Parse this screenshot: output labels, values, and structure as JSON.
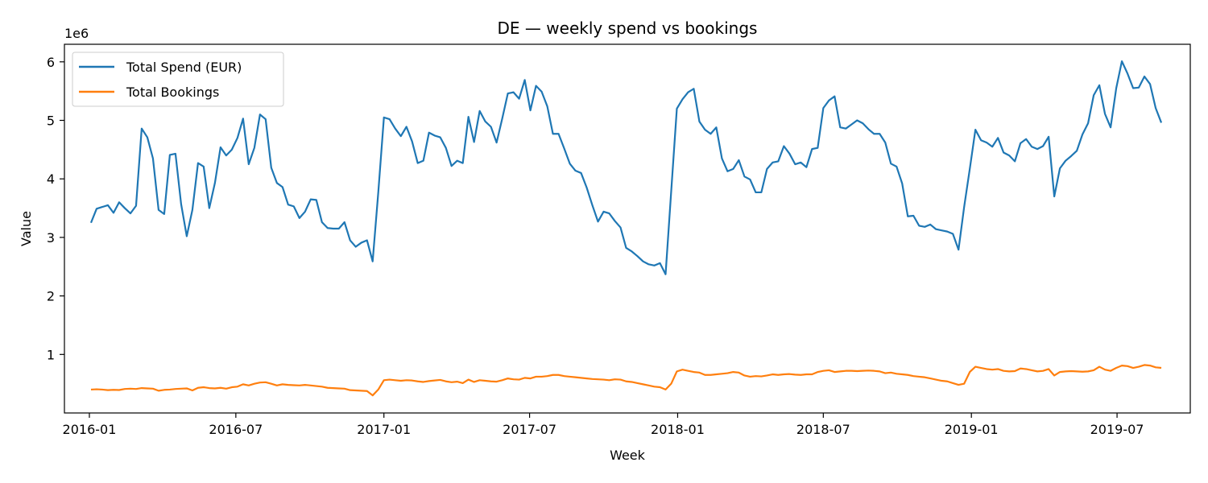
{
  "chart_data": {
    "type": "line",
    "title": "DE — weekly spend vs bookings",
    "xlabel": "Week",
    "ylabel": "Value",
    "y_scale_label": "1e6",
    "y_scale": 1000000,
    "xlim": [
      "2015-12-01",
      "2019-09-30"
    ],
    "ylim": [
      0,
      6300000
    ],
    "x_ticks": [
      "2016-01",
      "2016-07",
      "2017-01",
      "2017-07",
      "2018-01",
      "2018-07",
      "2019-01",
      "2019-07"
    ],
    "y_ticks": [
      1,
      2,
      3,
      4,
      5,
      6
    ],
    "grid": false,
    "legend_position": "top-left",
    "x_start": "2016-01-03",
    "x_step_days": 7,
    "series": [
      {
        "name": "Total Spend (EUR)",
        "color": "#1f77b4",
        "values": [
          3250000,
          3490000,
          3520000,
          3550000,
          3420000,
          3600000,
          3500000,
          3410000,
          3540000,
          4860000,
          4710000,
          4350000,
          3470000,
          3400000,
          4410000,
          4430000,
          3570000,
          3020000,
          3470000,
          4270000,
          4210000,
          3500000,
          3930000,
          4540000,
          4400000,
          4500000,
          4700000,
          5030000,
          4250000,
          4530000,
          5100000,
          5020000,
          4190000,
          3930000,
          3860000,
          3560000,
          3530000,
          3330000,
          3440000,
          3650000,
          3640000,
          3260000,
          3160000,
          3150000,
          3150000,
          3260000,
          2950000,
          2840000,
          2910000,
          2950000,
          2590000,
          3770000,
          5050000,
          5020000,
          4860000,
          4730000,
          4890000,
          4640000,
          4270000,
          4310000,
          4790000,
          4740000,
          4710000,
          4530000,
          4220000,
          4310000,
          4270000,
          5060000,
          4630000,
          5160000,
          4980000,
          4890000,
          4620000,
          5030000,
          5460000,
          5480000,
          5370000,
          5690000,
          5170000,
          5590000,
          5490000,
          5240000,
          4770000,
          4770000,
          4520000,
          4260000,
          4140000,
          4100000,
          3850000,
          3550000,
          3270000,
          3440000,
          3410000,
          3280000,
          3170000,
          2820000,
          2760000,
          2680000,
          2590000,
          2540000,
          2520000,
          2560000,
          2370000,
          3790000,
          5200000,
          5360000,
          5480000,
          5540000,
          4980000,
          4840000,
          4770000,
          4880000,
          4350000,
          4130000,
          4170000,
          4320000,
          4040000,
          3990000,
          3770000,
          3770000,
          4170000,
          4280000,
          4300000,
          4560000,
          4430000,
          4250000,
          4280000,
          4200000,
          4510000,
          4530000,
          5210000,
          5340000,
          5410000,
          4880000,
          4860000,
          4930000,
          5000000,
          4950000,
          4850000,
          4770000,
          4770000,
          4620000,
          4260000,
          4210000,
          3920000,
          3360000,
          3370000,
          3200000,
          3180000,
          3220000,
          3140000,
          3120000,
          3100000,
          3060000,
          2790000,
          3520000,
          4170000,
          4840000,
          4660000,
          4620000,
          4550000,
          4700000,
          4450000,
          4400000,
          4300000,
          4610000,
          4680000,
          4550000,
          4510000,
          4560000,
          4720000,
          3700000,
          4180000,
          4310000,
          4390000,
          4480000,
          4760000,
          4950000,
          5430000,
          5600000,
          5110000,
          4880000,
          5550000,
          6010000,
          5800000,
          5550000,
          5560000,
          5750000,
          5620000,
          5210000,
          4960000
        ]
      },
      {
        "name": "Total Bookings",
        "color": "#ff7f0e",
        "values": [
          400000,
          405000,
          400000,
          390000,
          395000,
          392000,
          410000,
          415000,
          410000,
          425000,
          420000,
          415000,
          380000,
          395000,
          400000,
          410000,
          415000,
          420000,
          385000,
          430000,
          440000,
          425000,
          420000,
          430000,
          415000,
          440000,
          450000,
          490000,
          470000,
          500000,
          520000,
          525000,
          500000,
          470000,
          490000,
          480000,
          475000,
          470000,
          480000,
          470000,
          460000,
          450000,
          430000,
          425000,
          420000,
          415000,
          390000,
          385000,
          380000,
          375000,
          300000,
          400000,
          560000,
          570000,
          560000,
          550000,
          560000,
          555000,
          540000,
          530000,
          545000,
          555000,
          565000,
          540000,
          525000,
          535000,
          510000,
          570000,
          530000,
          560000,
          550000,
          540000,
          535000,
          560000,
          590000,
          575000,
          570000,
          600000,
          590000,
          620000,
          620000,
          630000,
          650000,
          650000,
          630000,
          620000,
          610000,
          600000,
          590000,
          580000,
          575000,
          570000,
          560000,
          575000,
          570000,
          540000,
          530000,
          510000,
          490000,
          470000,
          450000,
          440000,
          400000,
          500000,
          710000,
          740000,
          720000,
          700000,
          690000,
          650000,
          650000,
          660000,
          670000,
          680000,
          700000,
          690000,
          640000,
          620000,
          630000,
          625000,
          640000,
          660000,
          650000,
          660000,
          665000,
          655000,
          650000,
          660000,
          660000,
          700000,
          720000,
          730000,
          700000,
          710000,
          720000,
          720000,
          715000,
          720000,
          725000,
          720000,
          710000,
          680000,
          690000,
          670000,
          660000,
          650000,
          630000,
          620000,
          610000,
          590000,
          570000,
          550000,
          540000,
          510000,
          480000,
          500000,
          700000,
          790000,
          770000,
          750000,
          740000,
          750000,
          720000,
          710000,
          715000,
          760000,
          750000,
          730000,
          710000,
          720000,
          750000,
          640000,
          700000,
          710000,
          715000,
          710000,
          705000,
          710000,
          730000,
          790000,
          740000,
          720000,
          770000,
          810000,
          800000,
          770000,
          790000,
          820000,
          810000,
          780000,
          770000
        ]
      }
    ]
  }
}
